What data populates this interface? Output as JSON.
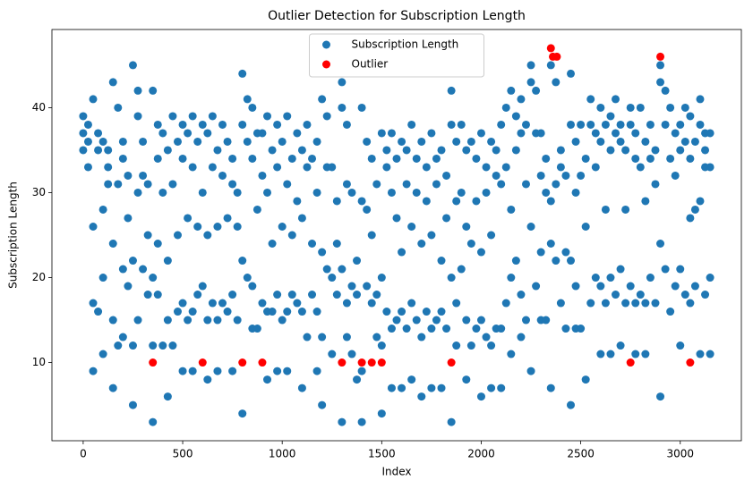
{
  "chart_data": {
    "type": "scatter",
    "title": "Outlier Detection for Subscription  Length",
    "x_label": "Index",
    "y_label": "Subscription  Length",
    "xlim": [
      -157,
      3307
    ],
    "ylim": [
      0.8,
      49.2
    ],
    "xticks": [
      0,
      500,
      1000,
      1500,
      2000,
      2500,
      3000
    ],
    "yticks": [
      10,
      20,
      30,
      40
    ],
    "legend": "upper center",
    "series": [
      {
        "name": "Subscription  Length",
        "color": "#1f77b4",
        "x": [
          0,
          0,
          0,
          25,
          25,
          25,
          50,
          50,
          50,
          50,
          75,
          75,
          75,
          100,
          100,
          100,
          100,
          125,
          125,
          125,
          150,
          150,
          150,
          150,
          175,
          175,
          175,
          200,
          200,
          200,
          200,
          225,
          225,
          225,
          250,
          250,
          250,
          250,
          275,
          275,
          275,
          275,
          300,
          300,
          300,
          325,
          325,
          325,
          350,
          350,
          350,
          350,
          375,
          375,
          375,
          375,
          400,
          400,
          400,
          425,
          425,
          425,
          425,
          450,
          450,
          450,
          475,
          475,
          475,
          500,
          500,
          500,
          500,
          525,
          525,
          525,
          550,
          550,
          550,
          550,
          575,
          575,
          575,
          600,
          600,
          600,
          625,
          625,
          625,
          625,
          650,
          650,
          650,
          675,
          675,
          675,
          675,
          700,
          700,
          700,
          725,
          725,
          725,
          750,
          750,
          750,
          750,
          775,
          775,
          775,
          800,
          800,
          800,
          800,
          825,
          825,
          825,
          850,
          850,
          850,
          850,
          875,
          875,
          875,
          900,
          900,
          900,
          925,
          925,
          925,
          925,
          950,
          950,
          950,
          975,
          975,
          975,
          975,
          1000,
          1000,
          1000,
          1025,
          1025,
          1025,
          1025,
          1050,
          1050,
          1050,
          1075,
          1075,
          1075,
          1100,
          1100,
          1100,
          1100,
          1125,
          1125,
          1125,
          1150,
          1150,
          1150,
          1175,
          1175,
          1175,
          1175,
          1200,
          1200,
          1200,
          1200,
          1225,
          1225,
          1225,
          1250,
          1250,
          1250,
          1275,
          1275,
          1275,
          1300,
          1300,
          1300,
          1300,
          1325,
          1325,
          1325,
          1325,
          1350,
          1350,
          1350,
          1375,
          1375,
          1375,
          1400,
          1400,
          1400,
          1400,
          1425,
          1425,
          1425,
          1450,
          1450,
          1450,
          1475,
          1475,
          1475,
          1500,
          1500,
          1500,
          1500,
          1525,
          1525,
          1525,
          1550,
          1550,
          1550,
          1550,
          1575,
          1575,
          1575,
          1600,
          1600,
          1600,
          1600,
          1625,
          1625,
          1625,
          1650,
          1650,
          1650,
          1650,
          1675,
          1675,
          1675,
          1700,
          1700,
          1700,
          1700,
          1725,
          1725,
          1725,
          1750,
          1750,
          1750,
          1750,
          1775,
          1775,
          1775,
          1800,
          1800,
          1800,
          1800,
          1825,
          1825,
          1825,
          1850,
          1850,
          1850,
          1850,
          1875,
          1875,
          1875,
          1875,
          1900,
          1900,
          1900,
          1925,
          1925,
          1925,
          1925,
          1950,
          1950,
          1950,
          1975,
          1975,
          1975,
          2000,
          2000,
          2000,
          2000,
          2025,
          2025,
          2025,
          2050,
          2050,
          2050,
          2050,
          2075,
          2075,
          2075,
          2100,
          2100,
          2100,
          2100,
          2125,
          2125,
          2125,
          2150,
          2150,
          2150,
          2150,
          2175,
          2175,
          2175,
          2200,
          2200,
          2200,
          2200,
          2225,
          2225,
          2225,
          2250,
          2250,
          2250,
          2250,
          2275,
          2275,
          2275,
          2300,
          2300,
          2300,
          2300,
          2325,
          2325,
          2325,
          2350,
          2350,
          2350,
          2350,
          2375,
          2375,
          2375,
          2400,
          2400,
          2400,
          2425,
          2425,
          2425,
          2450,
          2450,
          2450,
          2450,
          2475,
          2475,
          2475,
          2475,
          2500,
          2500,
          2500,
          2525,
          2525,
          2525,
          2550,
          2550,
          2550,
          2575,
          2575,
          2575,
          2600,
          2600,
          2600,
          2600,
          2625,
          2625,
          2625,
          2650,
          2650,
          2650,
          2650,
          2675,
          2675,
          2675,
          2700,
          2700,
          2700,
          2700,
          2725,
          2725,
          2725,
          2750,
          2750,
          2750,
          2775,
          2775,
          2775,
          2775,
          2800,
          2800,
          2800,
          2825,
          2825,
          2825,
          2825,
          2850,
          2850,
          2850,
          2875,
          2875,
          2875,
          2900,
          2900,
          2900,
          2900,
          2925,
          2925,
          2925,
          2950,
          2950,
          2950,
          2975,
          2975,
          2975,
          3000,
          3000,
          3000,
          3000,
          3025,
          3025,
          3025,
          3050,
          3050,
          3050,
          3050,
          3075,
          3075,
          3075,
          3100,
          3100,
          3100,
          3100,
          3125,
          3125,
          3125,
          3125,
          3150,
          3150,
          3150,
          3150
        ],
        "values": [
          39,
          37,
          35,
          33,
          36,
          38,
          41,
          26,
          17,
          9,
          35,
          37,
          16,
          36,
          11,
          20,
          28,
          33,
          31,
          35,
          43,
          24,
          15,
          7,
          40,
          31,
          12,
          36,
          21,
          13,
          34,
          32,
          27,
          19,
          45,
          22,
          12,
          5,
          42,
          39,
          30,
          15,
          36,
          32,
          21,
          31,
          25,
          18,
          42,
          20,
          12,
          3,
          38,
          34,
          24,
          18,
          37,
          30,
          12,
          35,
          22,
          15,
          6,
          39,
          31,
          12,
          36,
          25,
          16,
          38,
          34,
          17,
          9,
          37,
          27,
          15,
          39,
          33,
          16,
          9,
          36,
          26,
          18,
          38,
          30,
          19,
          37,
          25,
          15,
          8,
          39,
          33,
          17,
          35,
          26,
          15,
          9,
          38,
          32,
          17,
          36,
          27,
          16,
          34,
          31,
          18,
          9,
          30,
          26,
          15,
          44,
          38,
          22,
          4,
          41,
          36,
          20,
          40,
          34,
          19,
          14,
          37,
          28,
          14,
          37,
          32,
          17,
          39,
          30,
          16,
          8,
          35,
          24,
          16,
          38,
          33,
          18,
          9,
          36,
          26,
          15,
          39,
          31,
          16,
          9,
          34,
          25,
          18,
          37,
          29,
          17,
          35,
          27,
          16,
          7,
          38,
          33,
          13,
          34,
          24,
          18,
          36,
          30,
          16,
          9,
          41,
          23,
          13,
          5,
          39,
          33,
          21,
          33,
          20,
          11,
          29,
          24,
          18,
          43,
          40,
          21,
          3,
          38,
          31,
          17,
          13,
          30,
          19,
          11,
          22,
          18,
          8,
          40,
          29,
          9,
          3,
          36,
          28,
          19,
          34,
          25,
          17,
          31,
          18,
          13,
          37,
          20,
          12,
          4,
          35,
          33,
          16,
          37,
          30,
          14,
          7,
          34,
          27,
          15,
          36,
          23,
          16,
          7,
          35,
          31,
          14,
          38,
          26,
          17,
          8,
          34,
          30,
          15,
          36,
          24,
          13,
          6,
          33,
          29,
          16,
          37,
          25,
          14,
          7,
          34,
          31,
          15,
          35,
          22,
          16,
          7,
          32,
          27,
          14,
          42,
          38,
          20,
          3,
          36,
          29,
          17,
          12,
          38,
          30,
          21,
          35,
          26,
          15,
          8,
          36,
          24,
          12,
          34,
          29,
          14,
          37,
          23,
          15,
          6,
          33,
          30,
          13,
          36,
          25,
          12,
          7,
          35,
          32,
          14,
          38,
          31,
          14,
          7,
          40,
          33,
          17,
          42,
          28,
          20,
          11,
          39,
          35,
          22,
          41,
          37,
          18,
          13,
          38,
          31,
          15,
          45,
          43,
          26,
          9,
          42,
          37,
          19,
          37,
          32,
          23,
          15,
          34,
          30,
          15,
          45,
          29,
          24,
          7,
          43,
          31,
          22,
          35,
          33,
          17,
          32,
          23,
          14,
          44,
          38,
          22,
          5,
          36,
          30,
          19,
          14,
          38,
          32,
          14,
          34,
          26,
          8,
          41,
          38,
          17,
          37,
          33,
          20,
          40,
          36,
          19,
          11,
          38,
          28,
          17,
          39,
          35,
          20,
          11,
          41,
          37,
          18,
          38,
          36,
          21,
          12,
          35,
          28,
          17,
          40,
          38,
          19,
          37,
          34,
          17,
          11,
          40,
          33,
          18,
          36,
          29,
          17,
          11,
          38,
          34,
          20,
          35,
          31,
          17,
          45,
          43,
          24,
          6,
          42,
          38,
          21,
          40,
          34,
          16,
          37,
          32,
          19,
          38,
          35,
          21,
          12,
          40,
          36,
          18,
          39,
          34,
          27,
          17,
          36,
          28,
          19,
          41,
          38,
          29,
          11,
          37,
          35,
          18,
          33,
          37,
          33,
          20,
          11
        ]
      },
      {
        "name": "Outlier",
        "color": "#ff0000",
        "x": [
          350,
          600,
          800,
          900,
          1300,
          1400,
          1450,
          1500,
          1850,
          2350,
          2360,
          2380,
          2750,
          2900,
          3050
        ],
        "values": [
          10,
          10,
          10,
          10,
          10,
          10,
          10,
          10,
          10,
          47,
          46,
          46,
          10,
          46,
          10
        ]
      }
    ]
  }
}
